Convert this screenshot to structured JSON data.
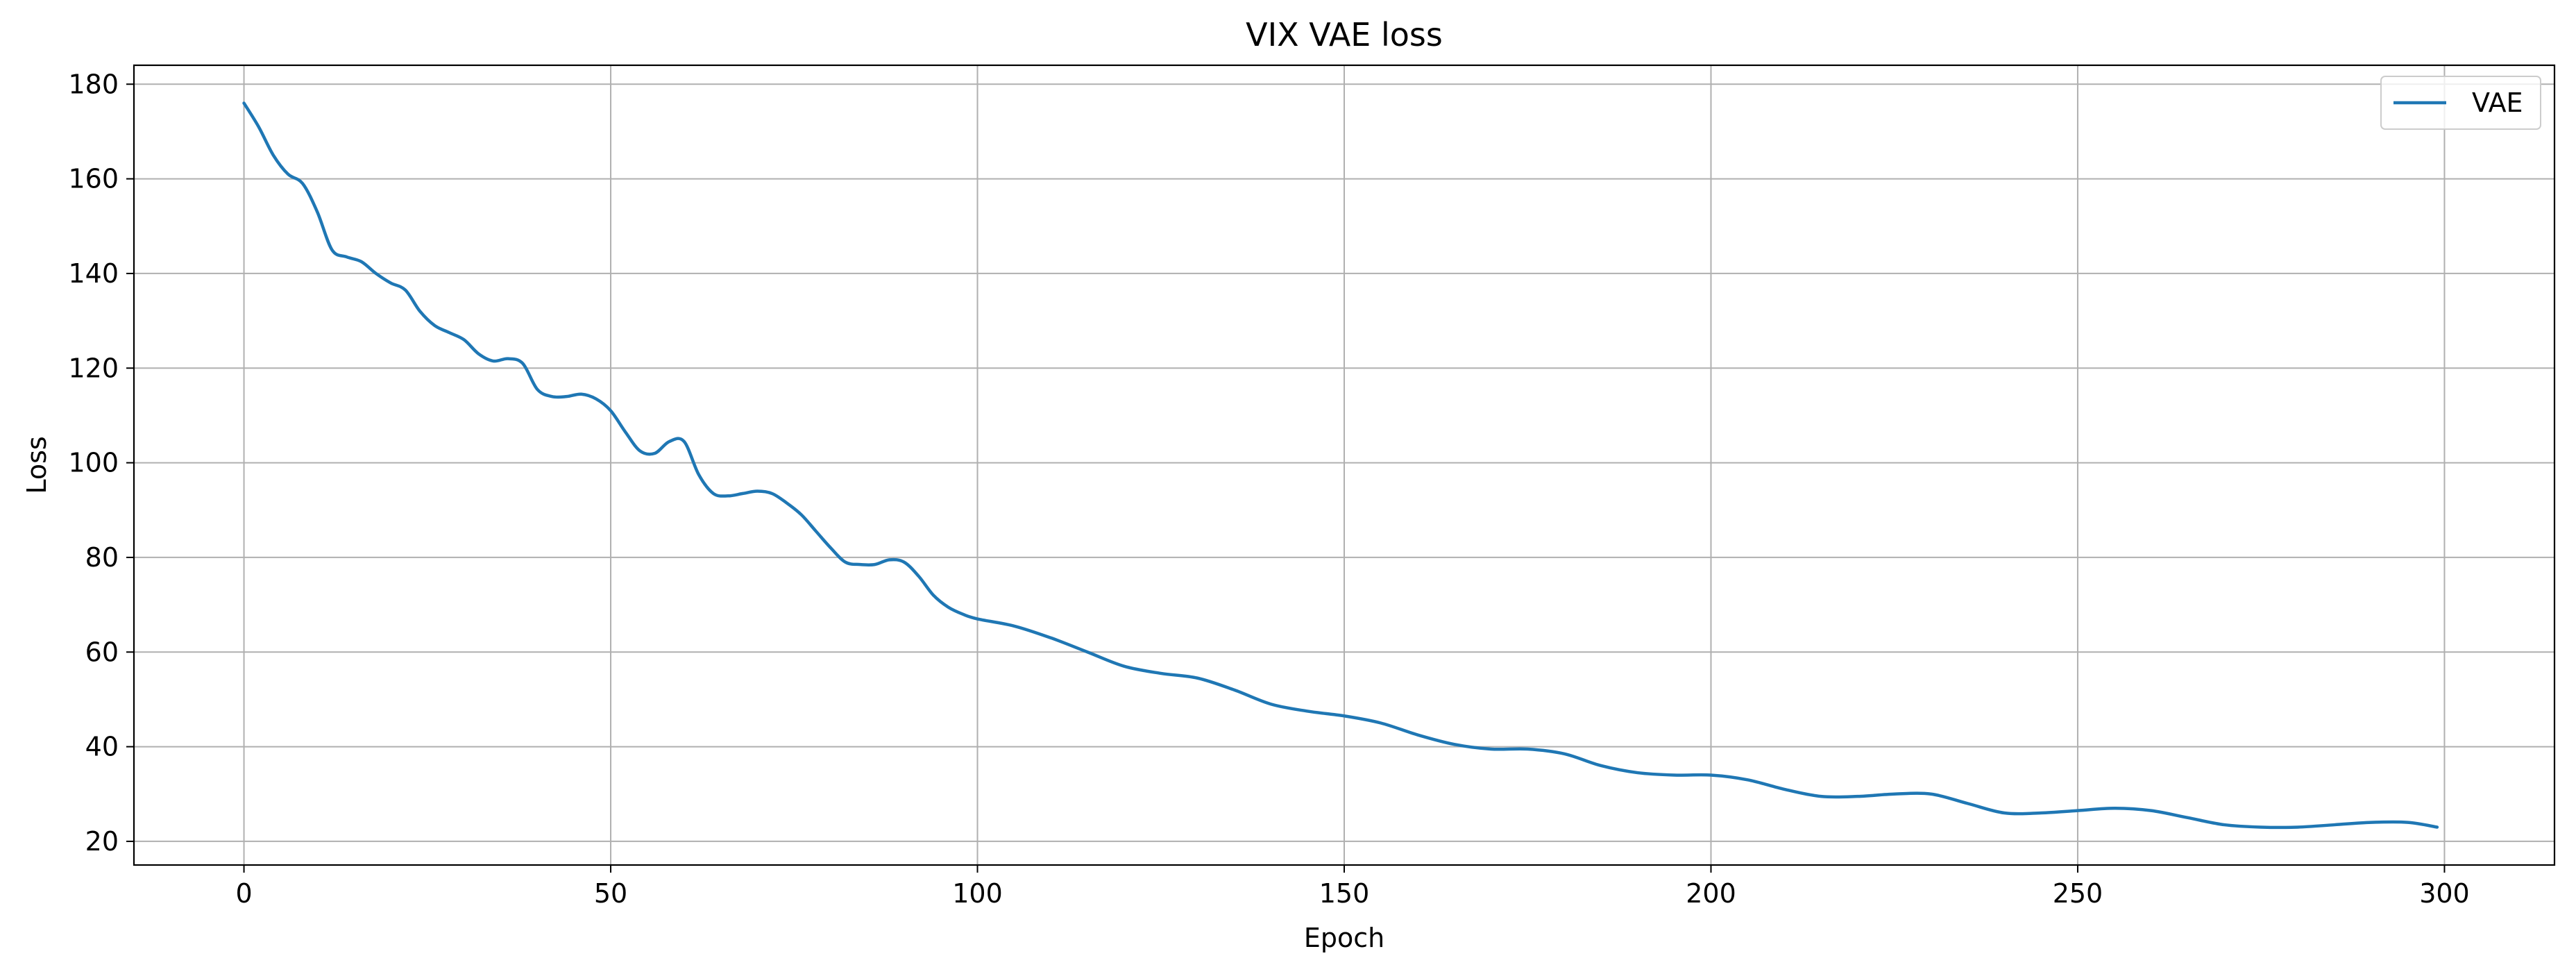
{
  "chart_data": {
    "type": "line",
    "title": "VIX VAE loss",
    "xlabel": "Epoch",
    "ylabel": "Loss",
    "xlim": [
      -15,
      315
    ],
    "ylim": [
      15,
      184
    ],
    "xticks": [
      0,
      50,
      100,
      150,
      200,
      250,
      300
    ],
    "yticks": [
      20,
      40,
      60,
      80,
      100,
      120,
      140,
      160,
      180
    ],
    "grid": true,
    "legend_position": "top-right",
    "series": [
      {
        "name": "VAE",
        "color": "#1f77b4",
        "x": [
          0,
          2,
          4,
          6,
          8,
          10,
          12,
          14,
          16,
          18,
          20,
          22,
          24,
          26,
          28,
          30,
          32,
          34,
          36,
          38,
          40,
          42,
          44,
          46,
          48,
          50,
          52,
          54,
          56,
          58,
          60,
          62,
          64,
          66,
          68,
          70,
          72,
          74,
          76,
          78,
          80,
          82,
          84,
          86,
          88,
          90,
          92,
          94,
          96,
          98,
          100,
          105,
          110,
          115,
          120,
          125,
          130,
          135,
          140,
          145,
          150,
          155,
          160,
          165,
          170,
          175,
          180,
          185,
          190,
          195,
          200,
          205,
          210,
          215,
          220,
          225,
          230,
          235,
          240,
          245,
          250,
          255,
          260,
          265,
          270,
          275,
          280,
          285,
          290,
          295,
          299
        ],
        "y": [
          176,
          171,
          165,
          161,
          159,
          153,
          145,
          143.5,
          142.5,
          140,
          138,
          136.5,
          132,
          129,
          127.5,
          126,
          123,
          121.5,
          122,
          121,
          115.5,
          114,
          114,
          114.5,
          113.5,
          111,
          106.5,
          102.5,
          102,
          104.5,
          104.5,
          97.5,
          93.5,
          93,
          93.5,
          94,
          93.5,
          91.5,
          89,
          85.5,
          82,
          79,
          78.5,
          78.5,
          79.5,
          79,
          76,
          72,
          69.5,
          68,
          67,
          65.5,
          63,
          60,
          57,
          55.5,
          54.5,
          52,
          49,
          47.5,
          46.5,
          45,
          42.5,
          40.5,
          39.5,
          39.5,
          38.5,
          36,
          34.5,
          34,
          34,
          33,
          31,
          29.5,
          29.5,
          30,
          30,
          28,
          26,
          26,
          26.5,
          27,
          26.5,
          25,
          23.5,
          23,
          23,
          23.5,
          24,
          24,
          23
        ]
      }
    ]
  }
}
